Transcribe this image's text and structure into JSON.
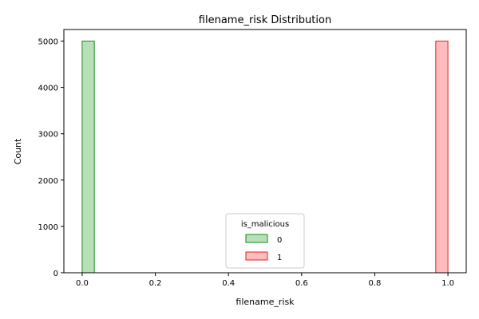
{
  "chart_data": {
    "type": "bar",
    "title": "filename_risk Distribution",
    "xlabel": "filename_risk",
    "ylabel": "Count",
    "xlim": [
      -0.05,
      1.05
    ],
    "ylim": [
      0,
      5250
    ],
    "xticks": [
      0.0,
      0.2,
      0.4,
      0.6,
      0.8,
      1.0
    ],
    "xtick_labels": [
      "0.0",
      "0.2",
      "0.4",
      "0.6",
      "0.8",
      "1.0"
    ],
    "yticks": [
      0,
      1000,
      2000,
      3000,
      4000,
      5000
    ],
    "ytick_labels": [
      "0",
      "1000",
      "2000",
      "3000",
      "4000",
      "5000"
    ],
    "grid": false,
    "legend": {
      "title": "is_malicious",
      "placement": "lower-center",
      "entries": [
        {
          "label": "0",
          "fill": "#b8e0b8",
          "stroke": "#1a8a1a"
        },
        {
          "label": "1",
          "fill": "#ffbcbc",
          "stroke": "#d62728"
        }
      ]
    },
    "series": [
      {
        "name": "0",
        "fill": "#b8e0b8",
        "stroke": "#1a8a1a",
        "bins": [
          {
            "x0": 0.0,
            "x1": 0.0333,
            "count": 5000
          }
        ],
        "baseline_x": [
          0.0333,
          1.0
        ]
      },
      {
        "name": "1",
        "fill": "#ffbcbc",
        "stroke": "#d62728",
        "bins": [
          {
            "x0": 0.9667,
            "x1": 1.0,
            "count": 5000
          }
        ],
        "baseline_x": [
          0.0,
          0.9667
        ]
      }
    ]
  }
}
